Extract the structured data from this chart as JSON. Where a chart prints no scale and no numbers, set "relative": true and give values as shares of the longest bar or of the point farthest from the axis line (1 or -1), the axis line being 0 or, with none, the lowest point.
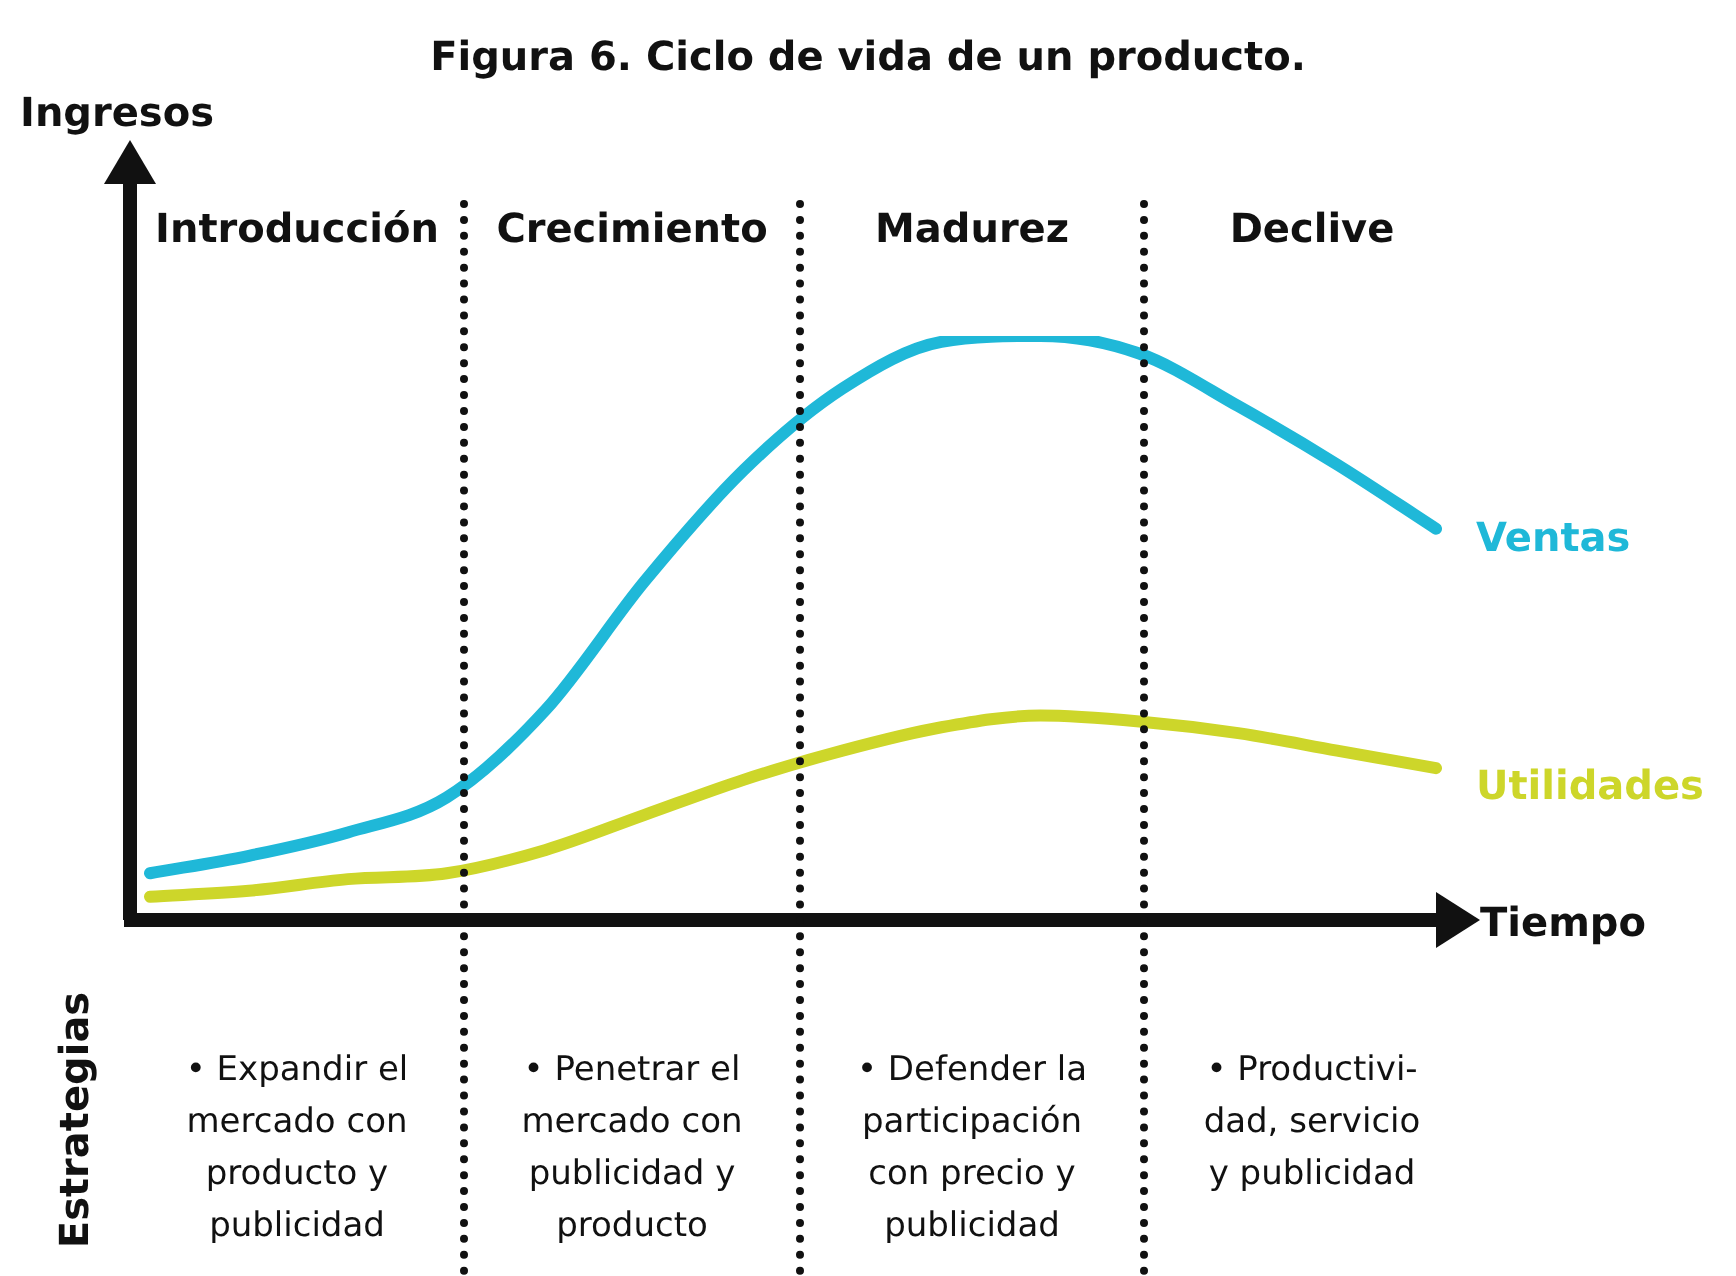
{
  "chart_data": {
    "type": "line",
    "title": "Figura 6. Ciclo de vida de un producto.",
    "xlabel": "Tiempo",
    "ylabel": "Ingresos",
    "relative": true,
    "legend": false,
    "marker": "none",
    "line_style": "solid",
    "categories": [
      null,
      null,
      null,
      null,
      null,
      null,
      null,
      null,
      null,
      null,
      null,
      null,
      null,
      null
    ],
    "series": [
      {
        "name": "Ventas",
        "color": "#1fb8d8",
        "values": [
          0.08,
          0.11,
          0.15,
          0.21,
          0.36,
          0.58,
          0.77,
          0.91,
          0.99,
          1,
          0.97,
          0.88,
          0.78,
          0.67
        ]
      },
      {
        "name": "Utilidades",
        "color": "#cdd62a",
        "values": [
          0.04,
          0.05,
          0.07,
          0.08,
          0.12,
          0.18,
          0.24,
          0.29,
          0.33,
          0.35,
          0.34,
          0.32,
          0.29,
          0.26
        ]
      }
    ],
    "annotations": [
      "Introducción",
      "Crecimiento",
      "Madurez",
      "Declive",
      "Estrategias",
      "• Expandir el\nmercado con\nproducto y\npublicidad",
      "• Penetrar el\nmercado con\npublicidad y\nproducto",
      "• Defender la\nparticipación\ncon precio y\npublicidad",
      "• Productivi-\ndad, servicio\ny publicidad"
    ]
  }
}
